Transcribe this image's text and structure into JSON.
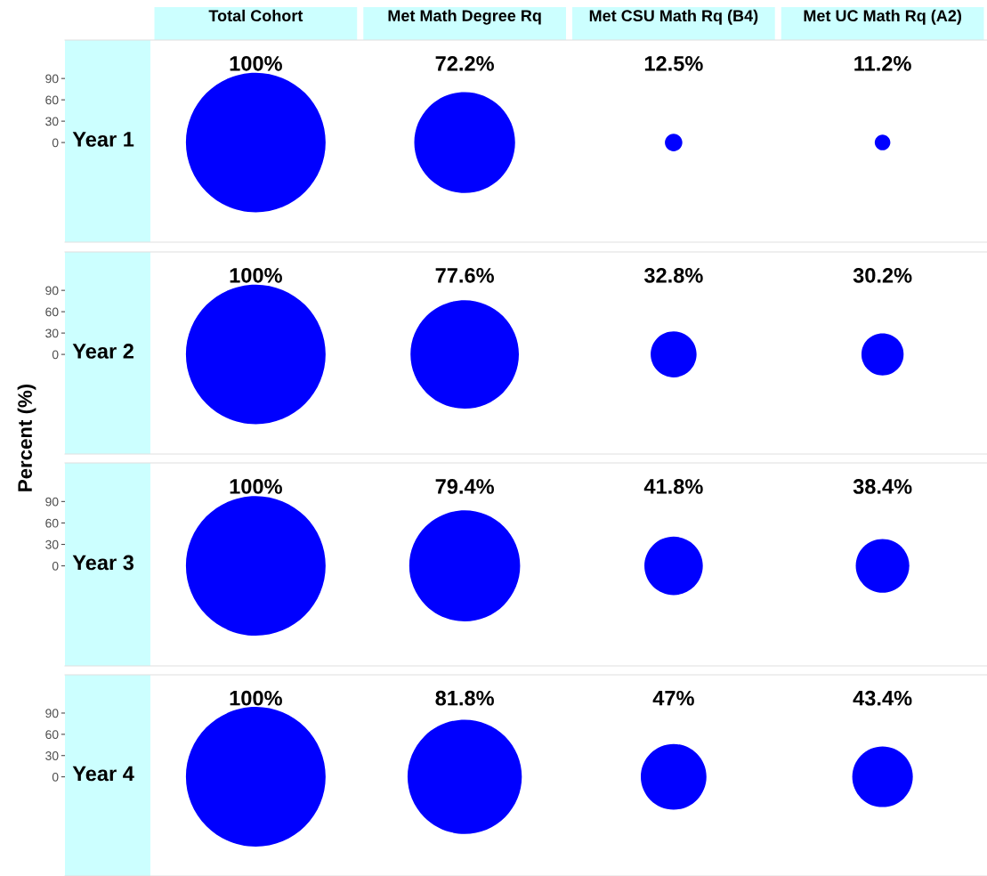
{
  "chart_data": [
    {
      "type": "bubble",
      "ylabel": "Year 1",
      "categories": [
        "Total Cohort",
        "Met Math Degree Rq",
        "Met CSU Math Rq (B4)",
        "Met UC Math Rq (A2)"
      ],
      "values": [
        0,
        0,
        0,
        0
      ],
      "sizes": [
        1,
        0.521,
        0.0156,
        0.0125
      ],
      "annotations": [
        "100%",
        "72.2%",
        "12.5%",
        "11.2%",
        "Percent (%)"
      ],
      "color": "#0000ff",
      "ylim": [
        -140,
        144
      ],
      "yticks": [
        0,
        30,
        60,
        90
      ]
    },
    {
      "type": "bubble",
      "ylabel": "Year 2",
      "categories": [
        null,
        null,
        null,
        null
      ],
      "values": [
        0,
        0,
        0,
        0
      ],
      "sizes": [
        1,
        0.602,
        0.108,
        0.0912
      ],
      "annotations": [
        "100%",
        "77.6%",
        "32.8%",
        "30.2%"
      ],
      "color": "#0000ff",
      "ylim": [
        -140,
        144
      ],
      "yticks": [
        0,
        30,
        60,
        90
      ]
    },
    {
      "type": "bubble",
      "ylabel": "Year 3",
      "categories": [
        null,
        null,
        null,
        null
      ],
      "values": [
        0,
        0,
        0,
        0
      ],
      "sizes": [
        1,
        0.63,
        0.175,
        0.147
      ],
      "annotations": [
        "100%",
        "79.4%",
        "41.8%",
        "38.4%"
      ],
      "color": "#0000ff",
      "ylim": [
        -140,
        144
      ],
      "yticks": [
        0,
        30,
        60,
        90
      ]
    },
    {
      "type": "bubble",
      "ylabel": "Year 4",
      "categories": [
        null,
        null,
        null,
        null
      ],
      "values": [
        0,
        0,
        0,
        0
      ],
      "sizes": [
        1,
        0.669,
        0.221,
        0.188
      ],
      "annotations": [
        "100%",
        "81.8%",
        "47%",
        "43.4%"
      ],
      "color": "#0000ff",
      "ylim": [
        -140,
        144
      ],
      "yticks": [
        0,
        30,
        60,
        90
      ]
    }
  ]
}
